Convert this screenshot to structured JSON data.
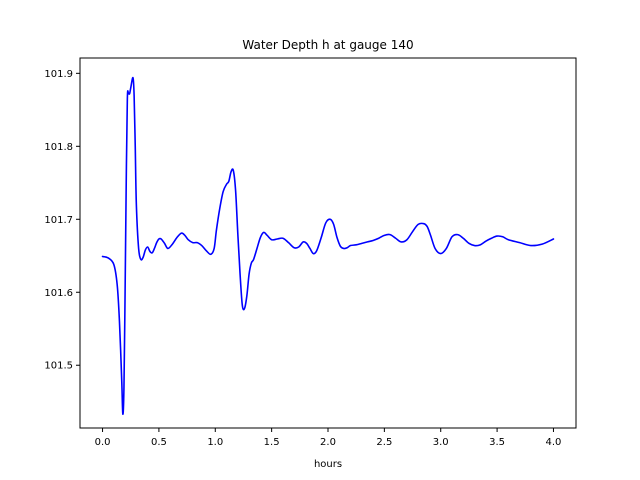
{
  "chart_data": {
    "type": "line",
    "title": "Water Depth h at gauge 140",
    "xlabel": "hours",
    "ylabel": "",
    "xlim": [
      -0.2,
      4.2
    ],
    "ylim": [
      101.414,
      101.921
    ],
    "grid": false,
    "xticks": [
      0.0,
      0.5,
      1.0,
      1.5,
      2.0,
      2.5,
      3.0,
      3.5,
      4.0
    ],
    "xtick_labels": [
      "0.0",
      "0.5",
      "1.0",
      "1.5",
      "2.0",
      "2.5",
      "3.0",
      "3.5",
      "4.0"
    ],
    "yticks": [
      101.5,
      101.6,
      101.7,
      101.8,
      101.9
    ],
    "ytick_labels": [
      "101.5",
      "101.6",
      "101.7",
      "101.8",
      "101.9"
    ],
    "series": [
      {
        "color": "#0000ff",
        "x": [
          0.0,
          0.05,
          0.1,
          0.13,
          0.15,
          0.17,
          0.18,
          0.19,
          0.2,
          0.21,
          0.22,
          0.23,
          0.24,
          0.25,
          0.27,
          0.28,
          0.29,
          0.3,
          0.32,
          0.34,
          0.36,
          0.38,
          0.4,
          0.42,
          0.44,
          0.46,
          0.48,
          0.5,
          0.52,
          0.55,
          0.58,
          0.62,
          0.66,
          0.7,
          0.73,
          0.76,
          0.8,
          0.84,
          0.88,
          0.92,
          0.96,
          0.99,
          1.01,
          1.04,
          1.07,
          1.1,
          1.12,
          1.14,
          1.16,
          1.18,
          1.2,
          1.22,
          1.24,
          1.26,
          1.28,
          1.3,
          1.32,
          1.34,
          1.37,
          1.4,
          1.43,
          1.46,
          1.5,
          1.55,
          1.6,
          1.65,
          1.7,
          1.74,
          1.78,
          1.81,
          1.84,
          1.87,
          1.9,
          1.94,
          1.98,
          2.02,
          2.05,
          2.08,
          2.11,
          2.14,
          2.17,
          2.2,
          2.25,
          2.3,
          2.35,
          2.4,
          2.45,
          2.5,
          2.55,
          2.6,
          2.65,
          2.7,
          2.75,
          2.8,
          2.85,
          2.88,
          2.91,
          2.95,
          3.0,
          3.05,
          3.1,
          3.15,
          3.2,
          3.25,
          3.3,
          3.35,
          3.4,
          3.45,
          3.5,
          3.55,
          3.6,
          3.7,
          3.8,
          3.9,
          4.0
        ],
        "y": [
          101.649,
          101.647,
          101.638,
          101.61,
          101.56,
          101.48,
          101.433,
          101.47,
          101.6,
          101.75,
          101.865,
          101.872,
          101.872,
          101.88,
          101.894,
          101.87,
          101.8,
          101.72,
          101.66,
          101.645,
          101.648,
          101.658,
          101.662,
          101.656,
          101.654,
          101.66,
          101.668,
          101.673,
          101.673,
          101.667,
          101.66,
          101.666,
          101.675,
          101.681,
          101.678,
          101.672,
          101.668,
          101.668,
          101.664,
          101.657,
          101.652,
          101.66,
          101.685,
          101.715,
          101.738,
          101.748,
          101.752,
          101.765,
          101.767,
          101.74,
          101.68,
          101.625,
          101.582,
          101.578,
          101.595,
          101.625,
          101.64,
          101.645,
          101.66,
          101.675,
          101.682,
          101.678,
          101.672,
          101.673,
          101.674,
          101.668,
          101.661,
          101.662,
          101.669,
          101.667,
          101.66,
          101.653,
          101.657,
          101.675,
          101.695,
          101.7,
          101.693,
          101.675,
          101.663,
          101.66,
          101.661,
          101.664,
          101.665,
          101.667,
          101.669,
          101.671,
          101.674,
          101.678,
          101.679,
          101.674,
          101.669,
          101.672,
          101.683,
          101.693,
          101.694,
          101.69,
          101.678,
          101.66,
          101.653,
          101.66,
          101.676,
          101.679,
          101.674,
          101.667,
          101.664,
          101.665,
          101.67,
          101.674,
          101.677,
          101.676,
          101.672,
          101.668,
          101.664,
          101.666,
          101.673
        ]
      }
    ]
  }
}
